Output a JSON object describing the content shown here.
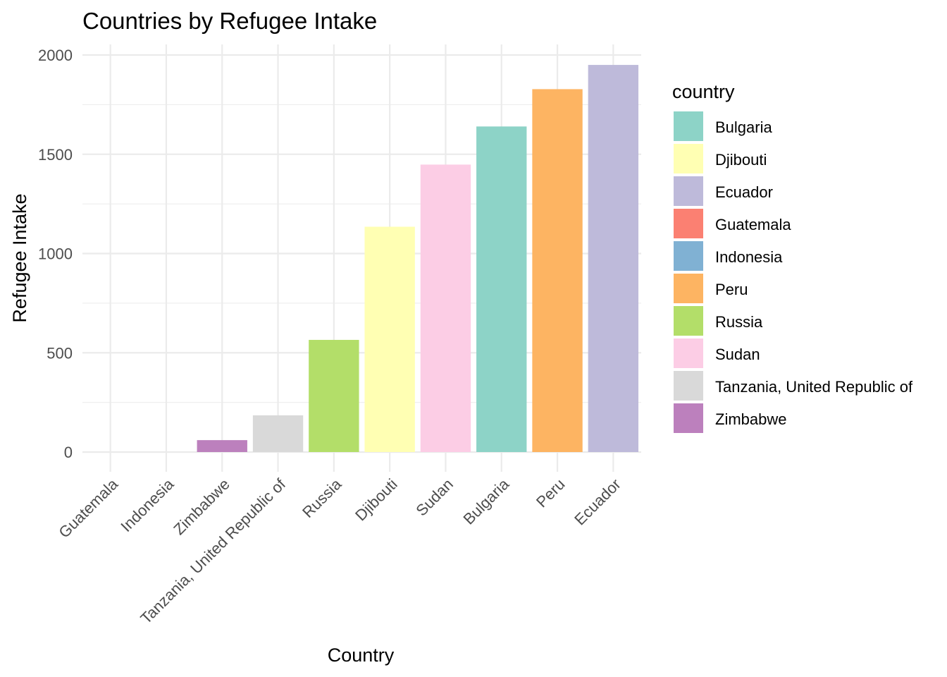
{
  "chart_data": {
    "type": "bar",
    "title": "Countries by Refugee Intake",
    "xlabel": "Country",
    "ylabel": "Refugee Intake",
    "categories": [
      "Guatemala",
      "Indonesia",
      "Zimbabwe",
      "Tanzania, United Republic of",
      "Russia",
      "Djibouti",
      "Sudan",
      "Bulgaria",
      "Peru",
      "Ecuador"
    ],
    "values": [
      0,
      0,
      60,
      185,
      565,
      1135,
      1448,
      1640,
      1828,
      1950
    ],
    "bar_colors": [
      "#FB8072",
      "#80B1D3",
      "#BC80BD",
      "#D9D9D9",
      "#B3DE69",
      "#FFFFB3",
      "#FCCDE5",
      "#8DD3C7",
      "#FDB462",
      "#BEBADA"
    ],
    "ylim": [
      -100,
      2050
    ],
    "yticks": [
      "0",
      "500",
      "1000",
      "1500",
      "2000"
    ],
    "ytick_values": [
      0,
      500,
      1000,
      1500,
      2000
    ],
    "grid": true,
    "legend": {
      "title": "country",
      "position": "right",
      "items": [
        {
          "label": "Bulgaria",
          "color": "#8DD3C7"
        },
        {
          "label": "Djibouti",
          "color": "#FFFFB3"
        },
        {
          "label": "Ecuador",
          "color": "#BEBADA"
        },
        {
          "label": "Guatemala",
          "color": "#FB8072"
        },
        {
          "label": "Indonesia",
          "color": "#80B1D3"
        },
        {
          "label": "Peru",
          "color": "#FDB462"
        },
        {
          "label": "Russia",
          "color": "#B3DE69"
        },
        {
          "label": "Sudan",
          "color": "#FCCDE5"
        },
        {
          "label": "Tanzania, United Republic of",
          "color": "#D9D9D9"
        },
        {
          "label": "Zimbabwe",
          "color": "#BC80BD"
        }
      ]
    }
  }
}
